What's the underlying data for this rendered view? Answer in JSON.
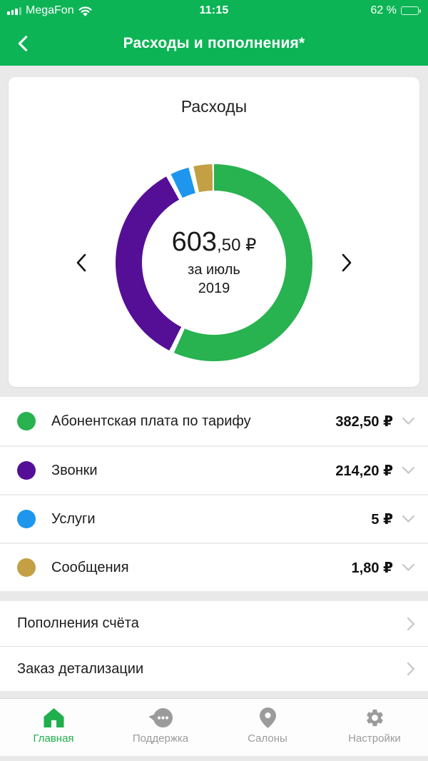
{
  "status_bar": {
    "carrier": "MegaFon",
    "time": "11:15",
    "battery_text": "62 %",
    "battery_percent": 62,
    "icons": [
      "signal-strength-icon",
      "wifi-icon",
      "battery-icon"
    ]
  },
  "header": {
    "title": "Расходы и пополнения*",
    "back_icon": "chevron-left-icon"
  },
  "card": {
    "title": "Расходы",
    "amount_main": "603",
    "amount_fraction": ",50 ₽",
    "period_line1": "за июль",
    "period_line2": "2019"
  },
  "chart_data": {
    "type": "pie",
    "subtype": "donut",
    "title": "Расходы",
    "center_total": "603,50 ₽",
    "period": "за июль 2019",
    "total_value": 603.5,
    "currency": "₽",
    "segments": [
      {
        "label": "Абонентская плата по тарифу",
        "value": 382.5,
        "display": "382,50 ₽",
        "color": "#28B250",
        "arc": [
          0,
          204
        ]
      },
      {
        "label": "Звонки",
        "value": 214.2,
        "display": "214,20 ₽",
        "color": "#550F96",
        "arc": [
          207,
          331
        ]
      },
      {
        "label": "Услуги",
        "value": 5,
        "display": "5 ₽",
        "color": "#1E96EE",
        "arc": [
          334,
          345
        ]
      },
      {
        "label": "Сообщения",
        "value": 1.8,
        "display": "1,80 ₽",
        "color": "#C3A044",
        "arc": [
          348,
          359
        ]
      }
    ],
    "legend_position": "list-below",
    "gap_color": "#FFFFFF"
  },
  "links": [
    {
      "label": "Пополнения счёта"
    },
    {
      "label": "Заказ детализации"
    }
  ],
  "tab_bar": {
    "items": [
      {
        "label": "Главная",
        "icon": "home-icon",
        "active": true
      },
      {
        "label": "Поддержка",
        "icon": "support-chat-icon",
        "active": false
      },
      {
        "label": "Салоны",
        "icon": "location-pin-icon",
        "active": false
      },
      {
        "label": "Настройки",
        "icon": "settings-gear-icon",
        "active": false
      }
    ]
  },
  "colors": {
    "header_green": "#0CB455",
    "active_tab_green": "#1FAF4D",
    "inactive_gray": "#9B9B9B",
    "background_gray": "#E9E9E9",
    "chevron_gray": "#C6C6C9"
  }
}
